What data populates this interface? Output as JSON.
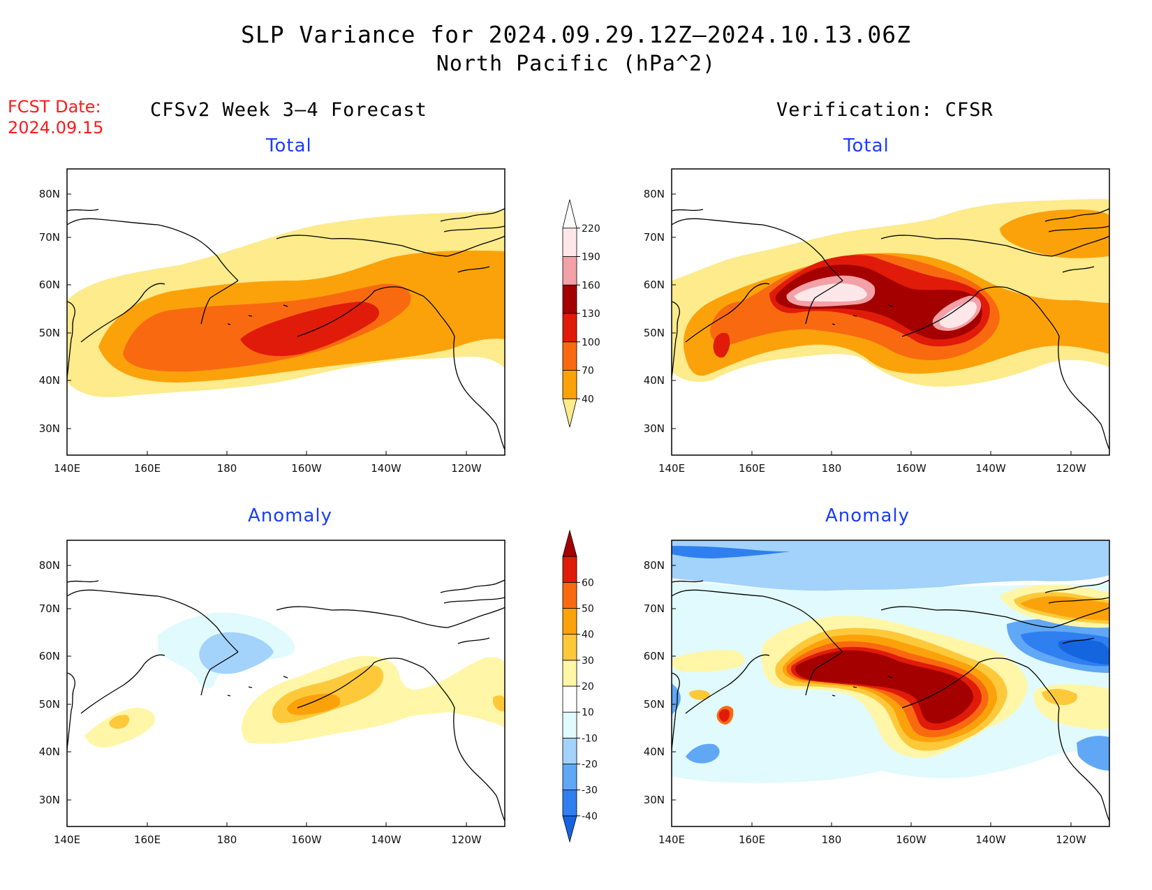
{
  "title": {
    "line1": "SLP Variance for 2024.09.29.12Z–2024.10.13.06Z",
    "line2": "North Pacific (hPa^2)"
  },
  "forecast_date": {
    "label": "FCST Date:",
    "value": "2024.09.15"
  },
  "columns": {
    "left": "CFSv2 Week 3–4 Forecast",
    "right": "Verification: CFSR"
  },
  "panel_titles": {
    "total": "Total",
    "anomaly": "Anomaly"
  },
  "axes": {
    "lon_labels": [
      "140E",
      "160E",
      "180",
      "160W",
      "140W",
      "120W"
    ],
    "lat_labels": [
      "30N",
      "40N",
      "50N",
      "60N",
      "70N",
      "80N"
    ]
  },
  "colorbar_total": {
    "levels": [
      "40",
      "70",
      "100",
      "130",
      "160",
      "190",
      "220"
    ],
    "colors": [
      "#fdeb8c",
      "#fba20b",
      "#f96a10",
      "#e01b0a",
      "#a50000",
      "#f2a1a6",
      "#fde7e9",
      "#fffdfd"
    ]
  },
  "colorbar_anomaly": {
    "levels": [
      "-40",
      "-30",
      "-20",
      "-10",
      "10",
      "20",
      "30",
      "40",
      "50",
      "60"
    ],
    "colors": [
      "#1565e0",
      "#2f7ff0",
      "#60a8f5",
      "#a3d2fa",
      "#e1fafd",
      "#ffffff",
      "#fff6a8",
      "#fdc93b",
      "#fba20b",
      "#f96a10",
      "#e01b0a",
      "#a50000"
    ]
  }
}
